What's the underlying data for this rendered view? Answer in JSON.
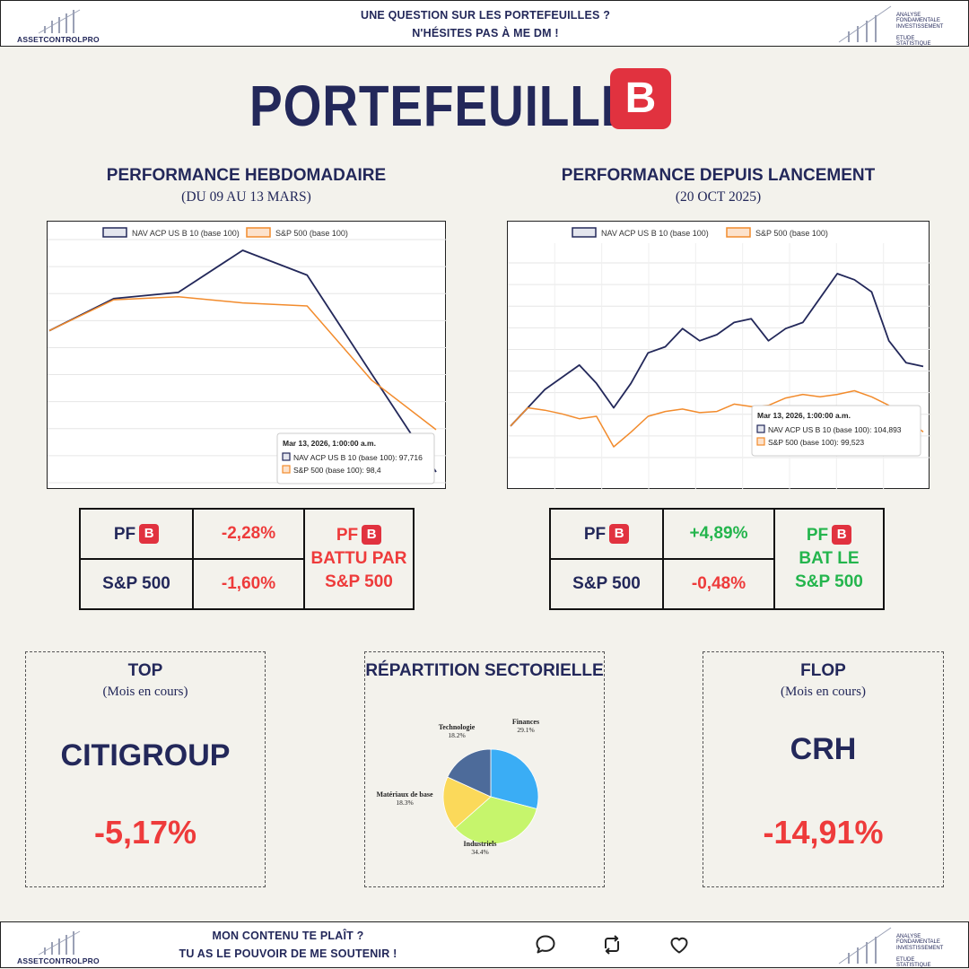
{
  "header": {
    "logo_text": "ASSETCONTROLPRO",
    "message_line1": "UNE QUESTION SUR LES PORTEFEUILLES ?",
    "message_line2": "N'HÉSITES PAS À ME DM !",
    "tags": [
      "ANALYSE FONDAMENTALE",
      "INVESTISSEMENT",
      "ETUDE STATISTIQUE"
    ]
  },
  "title": {
    "text": "PORTEFEUILLE",
    "badge": "B"
  },
  "weekly": {
    "title": "PERFORMANCE HEBDOMADAIRE",
    "subtitle": "(DU 09 AU 13 MARS)",
    "table": {
      "pf_label": "PF",
      "pf_badge": "B",
      "pf_value": "-2,28%",
      "sp_label": "S&P 500",
      "sp_value": "-1,60%",
      "verdict_line1": "PF",
      "verdict_badge": "B",
      "verdict_line2": "BATTU PAR",
      "verdict_line3": "S&P 500"
    }
  },
  "since_launch": {
    "title": "PERFORMANCE DEPUIS LANCEMENT",
    "subtitle": "(20 OCT 2025)",
    "table": {
      "pf_label": "PF",
      "pf_badge": "B",
      "pf_value": "+4,89%",
      "sp_label": "S&P 500",
      "sp_value": "-0,48%",
      "verdict_line1": "PF",
      "verdict_badge": "B",
      "verdict_line2": "BAT LE",
      "verdict_line3": "S&P 500"
    }
  },
  "top": {
    "title": "TOP",
    "subtitle": "(Mois en cours)",
    "name": "CITIGROUP",
    "value": "-5,17%"
  },
  "flop": {
    "title": "FLOP",
    "subtitle": "(Mois en cours)",
    "name": "CRH",
    "value": "-14,91%"
  },
  "sector": {
    "title": "RÉPARTITION SECTORIELLE"
  },
  "footer": {
    "logo_text": "ASSETCONTROLPRO",
    "message_line1": "MON CONTENU TE PLAÎT ?",
    "message_line2": "TU AS LE POUVOIR DE ME SOUTENIR !",
    "tags": [
      "ANALYSE FONDAMENTALE",
      "INVESTISSEMENT",
      "ETUDE STATISTIQUE"
    ]
  },
  "colors": {
    "navy": "#23285a",
    "red": "#e1323f",
    "orange": "#f28b2c",
    "green": "#24b54d"
  },
  "icons": [
    "logo-bars-icon",
    "comment-icon",
    "repost-icon",
    "like-icon"
  ],
  "chart_data": [
    {
      "type": "line",
      "title": "PERFORMANCE HEBDOMADAIRE",
      "legend": "top-center",
      "grid": true,
      "series": [
        {
          "name": "NAV ACP US B 10 (base 100)",
          "color": "#23285a",
          "values": [
            100,
            100.52,
            100.62,
            101.3,
            100.9,
            99.3,
            97.716
          ]
        },
        {
          "name": "S&P 500 (base 100)",
          "color": "#f28b2c",
          "values": [
            100,
            100.5,
            100.55,
            100.45,
            100.4,
            99.2,
            98.4
          ]
        }
      ],
      "tooltip": {
        "date": "Mar 13, 2026, 1:00:00 a.m.",
        "rows": [
          "NAV ACP US B 10 (base 100): 97,716",
          "S&P 500 (base 100): 98,4"
        ]
      }
    },
    {
      "type": "line",
      "title": "PERFORMANCE DEPUIS LANCEMENT",
      "legend": "top-center",
      "grid": true,
      "series": [
        {
          "name": "NAV ACP US B 10 (base 100)",
          "color": "#23285a",
          "values": [
            100,
            101.5,
            103,
            104,
            105,
            103.5,
            101.5,
            103.5,
            106,
            106.5,
            108,
            107,
            107.5,
            108.5,
            108.8,
            107,
            108,
            108.5,
            110.5,
            112.5,
            112,
            111,
            107,
            105.2,
            104.893
          ]
        },
        {
          "name": "S&P 500 (base 100)",
          "color": "#f28b2c",
          "values": [
            100,
            101.5,
            101.3,
            101,
            100.6,
            100.8,
            98.3,
            99.5,
            100.8,
            101.2,
            101.4,
            101.1,
            101.2,
            101.8,
            101.6,
            101.7,
            102.3,
            102.6,
            102.4,
            102.6,
            102.9,
            102.4,
            101.7,
            100.6,
            99.523
          ]
        }
      ],
      "tooltip": {
        "date": "Mar 13, 2026, 1:00:00 a.m.",
        "rows": [
          "NAV ACP US B 10 (base 100): 104,893",
          "S&P 500 (base 100): 99,523"
        ]
      }
    },
    {
      "type": "pie",
      "title": "RÉPARTITION SECTORIELLE",
      "slices": [
        {
          "label": "Finances",
          "value": 29.1,
          "pct": "29.1%",
          "color": "#3aadf5"
        },
        {
          "label": "Industriels",
          "value": 34.4,
          "pct": "34.4%",
          "color": "#c6f56c"
        },
        {
          "label": "Matériaux de base",
          "value": 18.3,
          "pct": "18.3%",
          "color": "#fbd95a"
        },
        {
          "label": "Technologie",
          "value": 18.2,
          "pct": "18.2%",
          "color": "#4d6b9a"
        }
      ]
    }
  ]
}
